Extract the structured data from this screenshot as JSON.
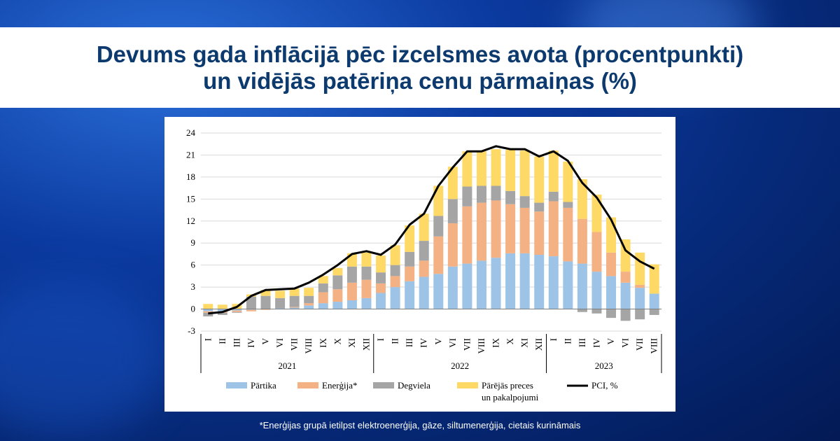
{
  "title": {
    "line1": "Devums gada inflācijā pēc izcelsmes avota (procentpunkti)",
    "line2": "un vidējās patēriņa cenu pārmaiņas (%)"
  },
  "footnote": "*Enerģijas grupā ietilpst elektroenerģija, gāze, siltumenerģija, cietais kurināmais",
  "chart_data": {
    "type": "bar",
    "stacked": true,
    "ylim": [
      -3,
      24
    ],
    "yticks": [
      -3,
      0,
      3,
      6,
      9,
      12,
      15,
      18,
      21,
      24
    ],
    "categories": [
      "I",
      "II",
      "III",
      "IV",
      "V",
      "VI",
      "VII",
      "VIII",
      "IX",
      "X",
      "XI",
      "XII",
      "I",
      "II",
      "III",
      "IV",
      "V",
      "VI",
      "VII",
      "VIII",
      "IX",
      "X",
      "XI",
      "XII",
      "I",
      "II",
      "III",
      "IV",
      "V",
      "VI",
      "VII",
      "VIII"
    ],
    "year_groups": [
      {
        "label": "2021",
        "start": 0,
        "end": 11
      },
      {
        "label": "2022",
        "start": 12,
        "end": 23
      },
      {
        "label": "2023",
        "start": 24,
        "end": 31
      }
    ],
    "series": [
      {
        "name": "Pārtika",
        "color": "#9dc3e6",
        "values": [
          -0.3,
          -0.3,
          -0.2,
          -0.1,
          0.0,
          0.1,
          0.2,
          0.5,
          0.8,
          1.0,
          1.2,
          1.5,
          2.2,
          3.0,
          3.8,
          4.4,
          4.8,
          5.8,
          6.2,
          6.6,
          7.0,
          7.6,
          7.6,
          7.4,
          7.2,
          6.5,
          6.2,
          5.1,
          4.5,
          3.6,
          2.9,
          2.1
        ]
      },
      {
        "name": "Enerģija*",
        "color": "#f4b183",
        "values": [
          -0.2,
          -0.2,
          -0.2,
          -0.2,
          -0.1,
          0.0,
          0.1,
          0.3,
          1.5,
          1.7,
          2.4,
          2.5,
          1.3,
          1.5,
          2.0,
          2.2,
          5.1,
          5.9,
          7.8,
          7.9,
          7.8,
          6.7,
          6.2,
          5.9,
          7.5,
          7.3,
          6.1,
          5.4,
          3.2,
          1.5,
          0.4,
          0.0
        ]
      },
      {
        "name": "Degviela",
        "color": "#a5a5a5",
        "values": [
          -0.5,
          -0.3,
          -0.1,
          1.7,
          1.8,
          1.4,
          1.5,
          1.0,
          1.2,
          1.9,
          2.2,
          1.8,
          1.5,
          1.5,
          2.0,
          2.7,
          2.8,
          3.3,
          2.7,
          2.3,
          2.0,
          1.8,
          1.6,
          1.2,
          1.3,
          0.8,
          -0.4,
          -0.6,
          -1.2,
          -1.6,
          -1.4,
          -0.8
        ]
      },
      {
        "name": "Pārējās preces un pakalpojumi",
        "color": "#ffd966",
        "values": [
          0.7,
          0.6,
          0.7,
          0.3,
          0.8,
          1.0,
          1.0,
          1.1,
          1.0,
          1.0,
          1.8,
          1.9,
          2.3,
          2.7,
          3.6,
          3.7,
          4.1,
          4.4,
          4.8,
          4.7,
          5.0,
          5.6,
          6.2,
          6.3,
          5.6,
          5.5,
          5.4,
          5.1,
          4.8,
          4.4,
          4.4,
          4.0
        ]
      }
    ],
    "line": {
      "name": "PCI, %",
      "color": "#000000",
      "values": [
        -0.6,
        -0.4,
        0.3,
        1.8,
        2.6,
        2.7,
        2.8,
        3.6,
        4.7,
        6.0,
        7.5,
        7.9,
        7.4,
        8.8,
        11.5,
        13.0,
        16.8,
        19.3,
        21.5,
        21.5,
        22.2,
        21.8,
        21.8,
        20.8,
        21.5,
        20.2,
        17.2,
        15.2,
        12.2,
        8.0,
        6.5,
        5.5
      ]
    },
    "legend": {
      "placement": "bottom",
      "items": [
        {
          "label": "Pārtika",
          "kind": "bar",
          "color": "#9dc3e6"
        },
        {
          "label": "Enerģija*",
          "kind": "bar",
          "color": "#f4b183"
        },
        {
          "label": "Degviela",
          "kind": "bar",
          "color": "#a5a5a5"
        },
        {
          "label": "Pārējās preces",
          "label2": "un pakalpojumi",
          "kind": "bar",
          "color": "#ffd966"
        },
        {
          "label": "PCI, %",
          "kind": "line",
          "color": "#000000"
        }
      ]
    },
    "grid": true
  }
}
